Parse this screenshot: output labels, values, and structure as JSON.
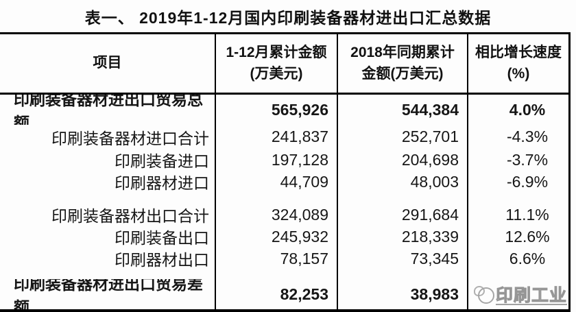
{
  "title": "表一、 2019年1-12月国内印刷装备器材进出口汇总数据",
  "table": {
    "headers": {
      "item": "项目",
      "current": [
        "1-12月累计金额",
        "(万美元)"
      ],
      "previous": [
        "2018年同期累计",
        "金额(万美元)"
      ],
      "growth": [
        "相比增长速度",
        "(%)"
      ]
    },
    "rows": [
      {
        "label": "印刷装备器材进出口贸易总额",
        "current": "565,926",
        "previous": "544,384",
        "growth": "4.0%"
      },
      {
        "label": "印刷装备器材进口合计",
        "current": "241,837",
        "previous": "252,701",
        "growth": "-4.3%"
      },
      {
        "label": "印刷装备进口",
        "current": "197,128",
        "previous": "204,698",
        "growth": "-3.7%"
      },
      {
        "label": "印刷器材进口",
        "current": "44,709",
        "previous": "48,003",
        "growth": "-6.9%"
      },
      {
        "label": "印刷装备器材出口合计",
        "current": "324,089",
        "previous": "291,684",
        "growth": "11.1%"
      },
      {
        "label": "印刷装备出口",
        "current": "245,932",
        "previous": "218,339",
        "growth": "12.6%"
      },
      {
        "label": "印刷器材出口",
        "current": "78,157",
        "previous": "73,345",
        "growth": "6.6%"
      },
      {
        "label": "印刷装备器材进出口贸易差额",
        "current": "82,253",
        "previous": "38,983",
        "growth": ""
      }
    ]
  },
  "watermark": {
    "text": "印刷工业"
  },
  "colors": {
    "border": "#000000",
    "text": "#161616",
    "watermark": "#9a9a9a"
  }
}
